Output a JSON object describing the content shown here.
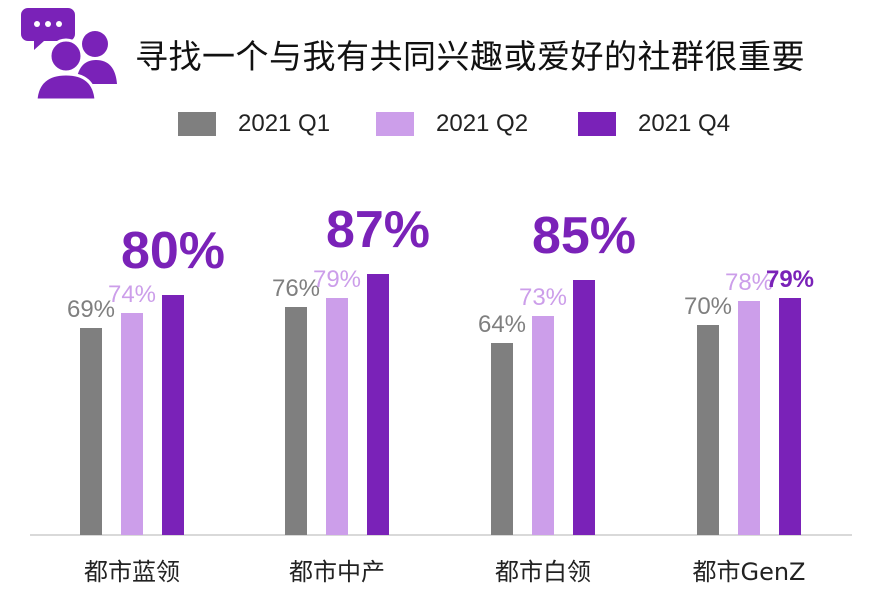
{
  "title": "寻找一个与我有共同兴趣或爱好的社群很重要",
  "icon": "chat-community-icon",
  "colors": {
    "q1": "#7f7f7f",
    "q2": "#cc9eea",
    "q4": "#7a22b8",
    "icon": "#7a22b8",
    "axis": "#d9d9d9"
  },
  "chart_data": {
    "type": "bar",
    "categories": [
      "都市蓝领",
      "都市中产",
      "都市白领",
      "都市GenZ"
    ],
    "series": [
      {
        "name": "2021 Q1",
        "values": [
          69,
          76,
          64,
          70
        ],
        "labels": [
          "69%",
          "76%",
          "64%",
          "70%"
        ]
      },
      {
        "name": "2021 Q2",
        "values": [
          74,
          79,
          73,
          78
        ],
        "labels": [
          "74%",
          "79%",
          "73%",
          "78%"
        ]
      },
      {
        "name": "2021 Q4",
        "values": [
          80,
          87,
          85,
          79
        ],
        "labels": [
          "80%",
          "87%",
          "85%",
          "79%"
        ]
      }
    ],
    "highlighted_labels": [
      true,
      true,
      true,
      false
    ],
    "ylim": [
      0,
      100
    ],
    "grid": false,
    "legend": "top-center"
  }
}
